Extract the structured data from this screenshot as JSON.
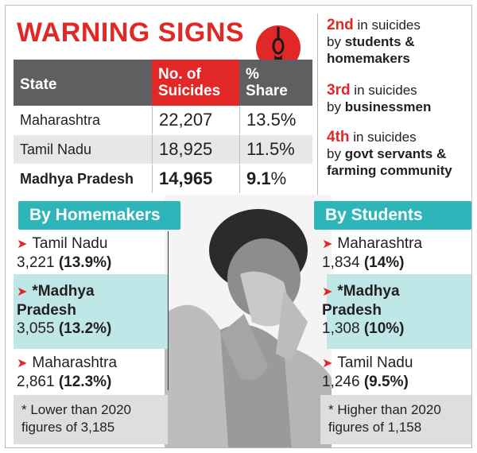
{
  "headline": "WARNING SIGNS",
  "table": {
    "headers": {
      "state": "State",
      "num_line1": "No. of",
      "num_line2": "Suicides",
      "share_line1": "%",
      "share_line2": "Share"
    },
    "rows": [
      {
        "state": "Maharashtra",
        "suicides": "22,207",
        "share": "13.5%"
      },
      {
        "state": "Tamil Nadu",
        "suicides": "18,925",
        "share": "11.5%"
      },
      {
        "state": "Madhya Pradesh",
        "suicides": "14,965",
        "share_num": "9.1",
        "share_sym": "%"
      }
    ]
  },
  "rankings": [
    {
      "ordinal": "2nd",
      "line1": " in suicides",
      "line2_pre": "by ",
      "line2_bold": "students &",
      "line3_bold": "homemakers"
    },
    {
      "ordinal": "3rd",
      "line1": " in suicides",
      "line2_pre": "by ",
      "line2_bold": "businessmen"
    },
    {
      "ordinal": "4th",
      "line1": " in suicides",
      "line2_pre": "by ",
      "line2_bold": "govt servants &",
      "line3_bold": "farming community"
    }
  ],
  "homemakers": {
    "title": "By Homemakers",
    "items": [
      {
        "name": "Tamil Nadu",
        "count": "3,221",
        "pct": "(13.9%)"
      },
      {
        "name_l1": "*Madhya",
        "name_l2": "Pradesh",
        "count": "3,055",
        "pct": "(13.2%)"
      },
      {
        "name": "Maharashtra",
        "count": "2,861",
        "pct": "(12.3%)"
      }
    ],
    "note_l1": "* Lower than 2020",
    "note_l2": "figures of 3,185"
  },
  "students": {
    "title": "By Students",
    "items": [
      {
        "name": "Maharashtra",
        "count": "1,834",
        "pct": "(14%)"
      },
      {
        "name_l1": "*Madhya",
        "name_l2": "Pradesh",
        "count": "1,308",
        "pct": "(10%)"
      },
      {
        "name": "Tamil Nadu",
        "count": "1,246",
        "pct": "(9.5%)"
      }
    ],
    "note_l1": "* Higher than 2020",
    "note_l2": "figures of 1,158"
  },
  "colors": {
    "accent_red": "#e22826",
    "teal": "#2eb5b9",
    "teal_tint": "#bfe7e8",
    "header_gray": "#5f5f61"
  },
  "icons": {
    "noose": "noose-icon",
    "arrow": "red-arrow-icon",
    "photo": "distressed-person-illustration"
  }
}
